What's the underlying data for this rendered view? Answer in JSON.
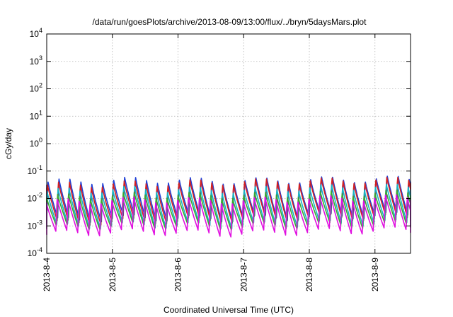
{
  "chart_data": {
    "type": "line",
    "title": "/data/run/goesPlots/archive/2013-08-09/13:00/flux/../bryn/5daysMars.plot",
    "xlabel": "Coordinated Universal Time (UTC)",
    "ylabel": "cGy/day",
    "yscale": "log",
    "ylim": [
      0.0001,
      10000
    ],
    "xlim": [
      "2013-08-04 00:00",
      "2013-08-09 13:00"
    ],
    "grid": true,
    "y_ticks": [
      {
        "base": "10",
        "exp": "-4"
      },
      {
        "base": "10",
        "exp": "-3"
      },
      {
        "base": "10",
        "exp": "-2"
      },
      {
        "base": "10",
        "exp": "-1"
      },
      {
        "base": "10",
        "exp": "0"
      },
      {
        "base": "10",
        "exp": "1"
      },
      {
        "base": "10",
        "exp": "2"
      },
      {
        "base": "10",
        "exp": "3"
      },
      {
        "base": "10",
        "exp": "4"
      }
    ],
    "x_ticks": [
      "2013-8-4",
      "2013-8-5",
      "2013-8-6",
      "2013-8-7",
      "2013-8-8",
      "2013-8-9"
    ],
    "oscillation_period_hours": 4,
    "series": [
      {
        "color": "#1f3fd6",
        "peaks_cGy_per_day": [
          0.045,
          0.055,
          0.05,
          0.055,
          0.06
        ],
        "troughs_cGy_per_day": [
          0.0015,
          0.002,
          0.0018,
          0.0022,
          0.0025
        ]
      },
      {
        "color": "#d42020",
        "peaks_cGy_per_day": [
          0.035,
          0.04,
          0.045,
          0.05,
          0.055
        ],
        "troughs_cGy_per_day": [
          0.0012,
          0.0015,
          0.0016,
          0.002,
          0.002
        ]
      },
      {
        "color": "#17b4c4",
        "peaks_cGy_per_day": [
          0.02,
          0.025,
          0.022,
          0.028,
          0.03
        ],
        "troughs_cGy_per_day": [
          0.0009,
          0.0011,
          0.001,
          0.0012,
          0.0013
        ]
      },
      {
        "color": "#3aa832",
        "peaks_cGy_per_day": [
          0.012,
          0.015,
          0.014,
          0.016,
          0.018
        ],
        "troughs_cGy_per_day": [
          0.0008,
          0.001,
          0.0009,
          0.001,
          0.0011
        ]
      },
      {
        "color": "#e010e0",
        "peaks_cGy_per_day": [
          0.008,
          0.01,
          0.009,
          0.011,
          0.012
        ],
        "troughs_cGy_per_day": [
          0.0005,
          0.0006,
          0.0005,
          0.0006,
          0.0007
        ]
      }
    ]
  }
}
